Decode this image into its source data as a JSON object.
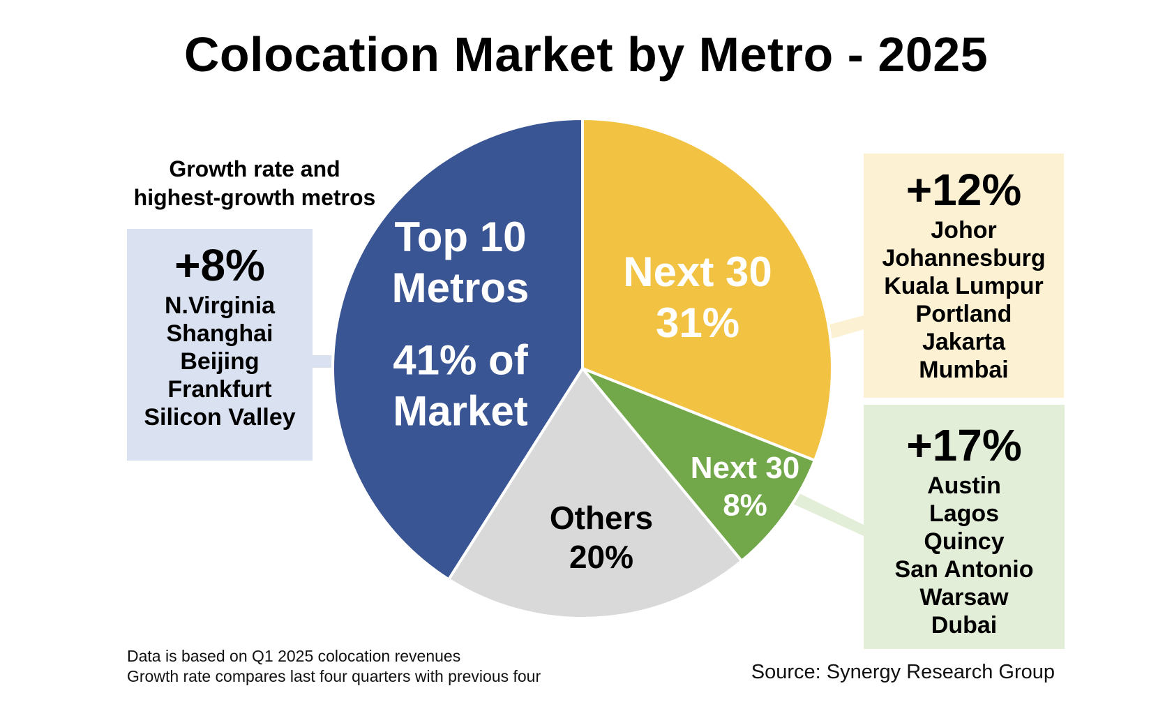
{
  "title": "Colocation Market by Metro - 2025",
  "growth_header": [
    "Growth rate and",
    "highest-growth metros"
  ],
  "chart_data": {
    "type": "pie",
    "title": "Colocation Market by Metro - 2025",
    "slices": [
      {
        "name": "Top 10 Metros",
        "value": 41,
        "color": "#3a5593",
        "label_lines": [
          "Top 10",
          "Metros",
          "41% of",
          "Market"
        ],
        "text_color": "#ffffff"
      },
      {
        "name": "Next 30",
        "value": 31,
        "color": "#f2c243",
        "label_lines": [
          "Next 30",
          "31%"
        ],
        "text_color": "#ffffff"
      },
      {
        "name": "Next 30",
        "value": 8,
        "color": "#72a84a",
        "label_lines": [
          "Next 30",
          "8%"
        ],
        "text_color": "#ffffff"
      },
      {
        "name": "Others",
        "value": 20,
        "color": "#d9d9d9",
        "label_lines": [
          "Others",
          "20%"
        ],
        "text_color": "#000000"
      }
    ]
  },
  "growth_boxes": [
    {
      "growth": "+8%",
      "metros": [
        "N.Virginia",
        "Shanghai",
        "Beijing",
        "Frankfurt",
        "Silicon Valley"
      ],
      "color": "#dae2f2"
    },
    {
      "growth": "+12%",
      "metros": [
        "Johor",
        "Johannesburg",
        "Kuala Lumpur",
        "Portland",
        "Jakarta",
        "Mumbai"
      ],
      "color": "#fdf1d3"
    },
    {
      "growth": "+17%",
      "metros": [
        "Austin",
        "Lagos",
        "Quincy",
        "San Antonio",
        "Warsaw",
        "Dubai"
      ],
      "color": "#e3eed9"
    }
  ],
  "footnotes": [
    "Data is based on Q1 2025 colocation revenues",
    "Growth rate compares last four quarters with previous four"
  ],
  "source": "Source: Synergy Research Group"
}
